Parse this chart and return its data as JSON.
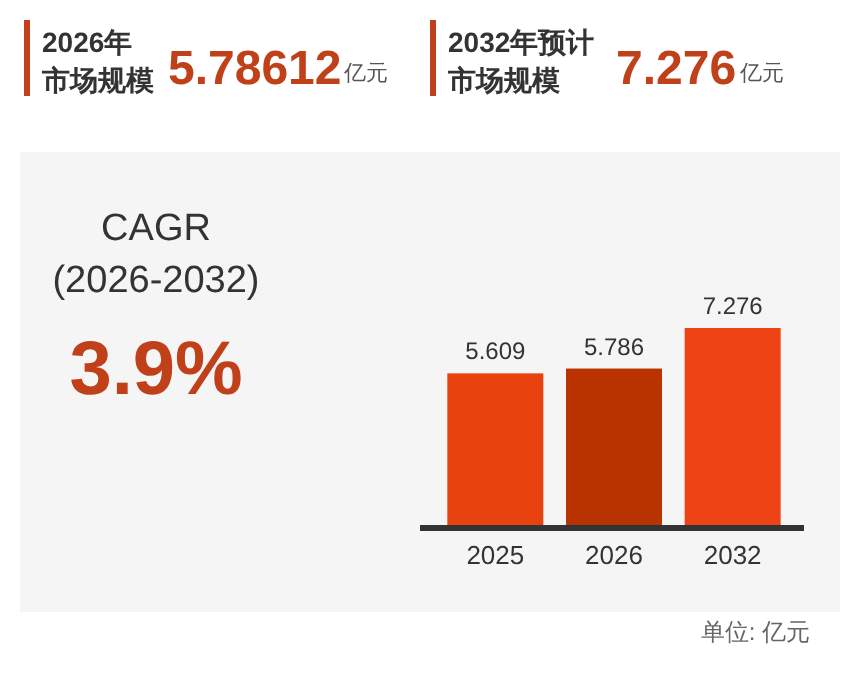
{
  "chart_data": {
    "type": "bar",
    "categories": [
      "2025",
      "2026",
      "2032"
    ],
    "values": [
      5.609,
      5.786,
      7.276
    ],
    "colors": [
      "#e8420f",
      "#b83300",
      "#ee4415"
    ],
    "data_labels": true,
    "annotations": [
      "2026年",
      "市场规模",
      "5.78612",
      "亿元",
      "2032年预计",
      "市场规模",
      "7.276",
      "亿元",
      "CAGR",
      "(2026-2032)",
      "3.9%",
      "单位: 亿元"
    ]
  }
}
